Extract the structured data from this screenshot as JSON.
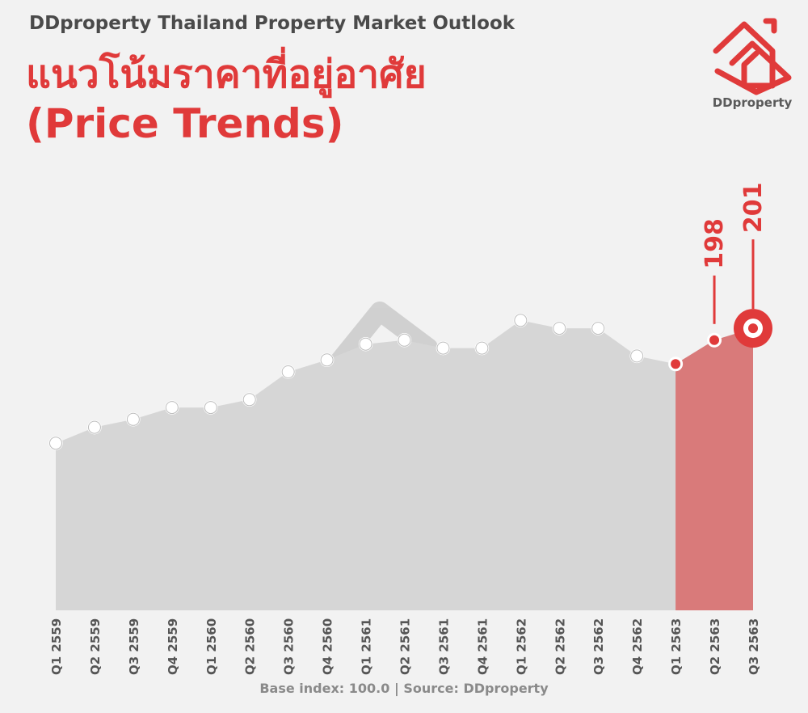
{
  "header": {
    "kicker": "DDproperty Thailand Property Market Outlook",
    "title_th": "แนวโน้มราคาที่อยู่อาศัย",
    "title_en": "(Price Trends)"
  },
  "brand": {
    "name": "DDproperty",
    "logo_icon": "ddproperty-house-logo-icon",
    "color": "#e03a3a"
  },
  "footer": {
    "source": "Base index: 100.0 | Source: DDproperty"
  },
  "chart_data": {
    "type": "area",
    "categories": [
      "Q1 2559",
      "Q2 2559",
      "Q3 2559",
      "Q4 2559",
      "Q1 2560",
      "Q2 2560",
      "Q3 2560",
      "Q4 2560",
      "Q1 2561",
      "Q2 2561",
      "Q3 2561",
      "Q4 2561",
      "Q1 2562",
      "Q2 2562",
      "Q3 2562",
      "Q4 2562",
      "Q1 2563",
      "Q2 2563",
      "Q3 2563"
    ],
    "values": [
      172,
      176,
      178,
      181,
      181,
      183,
      190,
      193,
      197,
      198,
      196,
      196,
      203,
      201,
      201,
      194,
      192,
      198,
      201
    ],
    "data_labels": [
      {
        "category": "Q2 2563",
        "text": "198"
      },
      {
        "category": "Q3 2563",
        "text": "201"
      }
    ],
    "highlight_from": "Q1 2563",
    "title": "",
    "xlabel": "",
    "ylabel": "",
    "colors": {
      "area": "#d6d6d6",
      "highlight_area": "#d97a7a",
      "accent": "#e03a3a",
      "point_fill": "#ffffff"
    }
  }
}
